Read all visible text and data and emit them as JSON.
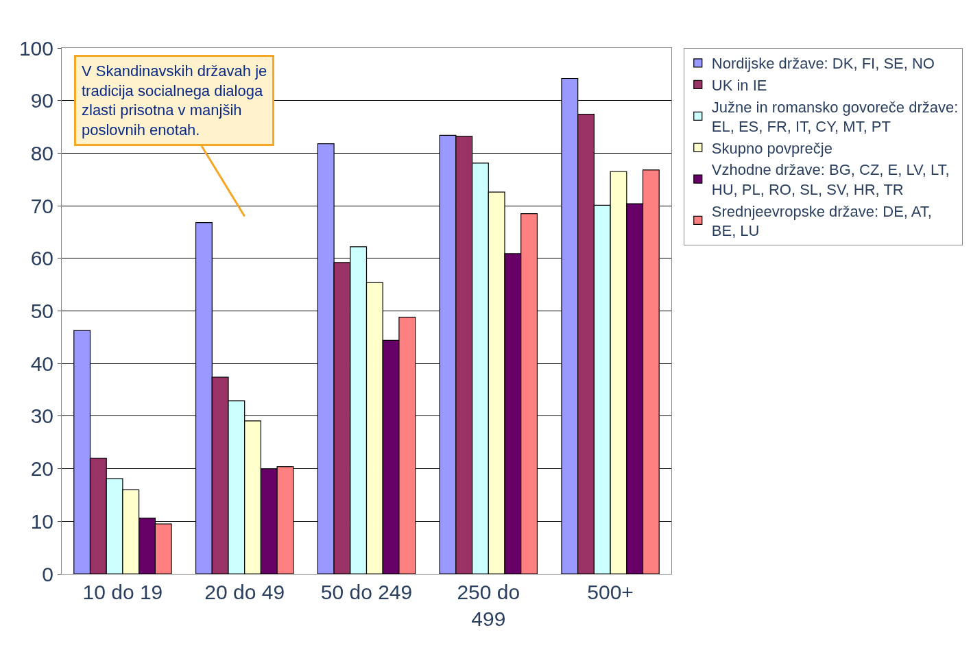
{
  "chart_data": {
    "type": "bar",
    "categories": [
      "10 do 19",
      "20 do 49",
      "50 do 249",
      "250 do 499",
      "500+"
    ],
    "series": [
      {
        "name": "Nordijske države: DK, FI, SE, NO",
        "color": "#9999ff",
        "values": [
          46.3,
          66.8,
          81.8,
          83.4,
          94.2
        ]
      },
      {
        "name": "UK in IE",
        "color": "#993366",
        "values": [
          22.0,
          37.4,
          59.2,
          83.2,
          87.4
        ]
      },
      {
        "name": "Južne in romansko govoreče države: EL, ES, FR, IT, CY, MT, PT",
        "color": "#ccffff",
        "values": [
          18.1,
          32.9,
          62.2,
          78.1,
          70.1
        ]
      },
      {
        "name": "Skupno povprečje",
        "color": "#ffffcc",
        "values": [
          16.0,
          29.1,
          55.4,
          72.6,
          76.5
        ]
      },
      {
        "name": "Vzhodne države: BG, CZ, E, LV, LT, HU, PL, RO, SL, SV, HR, TR",
        "color": "#660066",
        "values": [
          10.6,
          20.0,
          44.4,
          60.9,
          70.4
        ]
      },
      {
        "name": "Srednjeevropske države: DE, AT, BE, LU",
        "color": "#ff8080",
        "values": [
          9.5,
          20.4,
          48.8,
          68.5,
          76.8
        ]
      }
    ],
    "ylim": [
      0,
      100
    ],
    "yticks": [
      0,
      10,
      20,
      30,
      40,
      50,
      60,
      70,
      80,
      90,
      100
    ],
    "grid": "y",
    "legend": "right",
    "annotations": [
      "V Skandinavskih državah je tradicija socialnega dialoga zlasti prisotna v manjših poslovnih enotah."
    ]
  }
}
